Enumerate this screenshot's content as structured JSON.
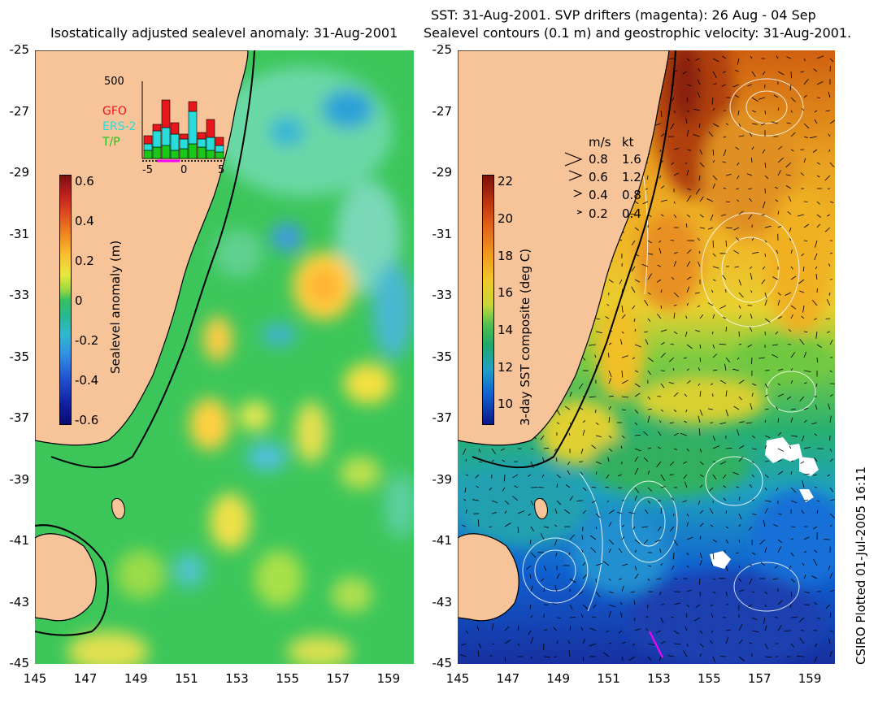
{
  "left": {
    "title": "Isostatically adjusted sealevel anomaly: 31-Aug-2001",
    "colorbar_label": "Sealevel anomaly (m)",
    "colorbar_ticks": [
      "0.6",
      "0.4",
      "0.2",
      "0",
      "-0.2",
      "-0.4",
      "-0.6"
    ],
    "histogram": {
      "ymax_label": "500",
      "xticks": [
        "-5",
        "0",
        "5"
      ],
      "legend": [
        "GFO",
        "ERS-2",
        "T/P"
      ],
      "colors": {
        "GFO": "#e8171b",
        "ERS-2": "#28dcdc",
        "T/P": "#19c819"
      }
    }
  },
  "right": {
    "title_line1": "SST: 31-Aug-2001. SVP drifters (magenta): 26 Aug - 04 Sep",
    "title_line2": "Sealevel contours (0.1 m) and geostrophic velocity: 31-Aug-2001.",
    "colorbar_label": "3-day SST composite (deg C)",
    "colorbar_ticks": [
      "22",
      "20",
      "18",
      "16",
      "14",
      "12",
      "10"
    ],
    "velocity_legend": {
      "header_ms": "m/s",
      "header_kt": "kt",
      "rows": [
        {
          "ms": "0.8",
          "kt": "1.6"
        },
        {
          "ms": "0.6",
          "kt": "1.2"
        },
        {
          "ms": "0.4",
          "kt": "0.8"
        },
        {
          "ms": "0.2",
          "kt": "0.4"
        }
      ]
    }
  },
  "axes": {
    "lat_ticks": [
      "-25",
      "-27",
      "-29",
      "-31",
      "-33",
      "-35",
      "-37",
      "-39",
      "-41",
      "-43",
      "-45"
    ],
    "lon_ticks": [
      "145",
      "147",
      "149",
      "151",
      "153",
      "155",
      "157",
      "159"
    ]
  },
  "credit": "CSIRO Plotted 01-Jul-2005 16:11",
  "colors": {
    "land": "#f7c49a",
    "coast": "#000000"
  }
}
